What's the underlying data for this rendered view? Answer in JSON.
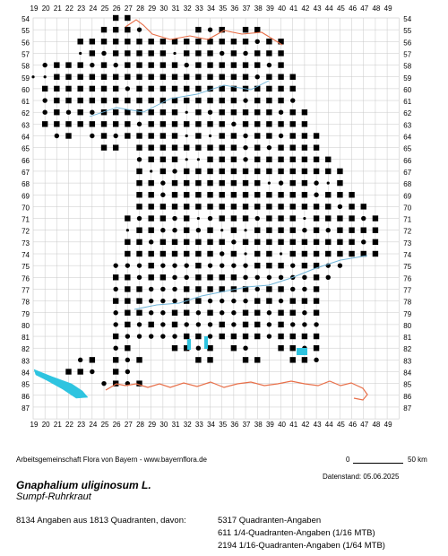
{
  "map": {
    "column_labels": [
      "19",
      "20",
      "21",
      "22",
      "23",
      "24",
      "25",
      "26",
      "27",
      "28",
      "29",
      "30",
      "31",
      "32",
      "33",
      "34",
      "35",
      "36",
      "37",
      "38",
      "39",
      "40",
      "41",
      "42",
      "43",
      "44",
      "45",
      "46",
      "47",
      "48",
      "49"
    ],
    "row_labels": [
      "54",
      "55",
      "56",
      "57",
      "58",
      "59",
      "60",
      "61",
      "62",
      "63",
      "64",
      "65",
      "66",
      "67",
      "68",
      "69",
      "70",
      "71",
      "72",
      "73",
      "74",
      "75",
      "76",
      "77",
      "78",
      "79",
      "80",
      "81",
      "82",
      "83",
      "84",
      "85",
      "86",
      "87"
    ],
    "colors": {
      "grid": "#c8c8c8",
      "border": "#e8704a",
      "rivers": "#6fb4d8",
      "lakes": "#2ec4e0",
      "marker": "#000000"
    },
    "marker_types": [
      "square",
      "dot",
      "small-dot"
    ],
    "coverage_rows": [
      {
        "row": "54",
        "spans": [
          [
            26,
            27
          ]
        ]
      },
      {
        "row": "55",
        "spans": [
          [
            25,
            28
          ],
          [
            33,
            35
          ],
          [
            37,
            38
          ]
        ]
      },
      {
        "row": "56",
        "spans": [
          [
            23,
            40
          ]
        ]
      },
      {
        "row": "57",
        "spans": [
          [
            23,
            40
          ]
        ]
      },
      {
        "row": "58",
        "spans": [
          [
            20,
            40
          ]
        ]
      },
      {
        "row": "59",
        "spans": [
          [
            19,
            41
          ]
        ]
      },
      {
        "row": "60",
        "spans": [
          [
            20,
            41
          ]
        ]
      },
      {
        "row": "61",
        "spans": [
          [
            20,
            41
          ]
        ]
      },
      {
        "row": "62",
        "spans": [
          [
            20,
            42
          ]
        ]
      },
      {
        "row": "63",
        "spans": [
          [
            20,
            42
          ]
        ]
      },
      {
        "row": "64",
        "spans": [
          [
            21,
            22
          ],
          [
            24,
            43
          ]
        ]
      },
      {
        "row": "65",
        "spans": [
          [
            25,
            26
          ],
          [
            28,
            43
          ]
        ]
      },
      {
        "row": "66",
        "spans": [
          [
            28,
            44
          ]
        ]
      },
      {
        "row": "67",
        "spans": [
          [
            28,
            45
          ]
        ]
      },
      {
        "row": "68",
        "spans": [
          [
            28,
            45
          ]
        ]
      },
      {
        "row": "69",
        "spans": [
          [
            28,
            46
          ]
        ]
      },
      {
        "row": "70",
        "spans": [
          [
            28,
            47
          ]
        ]
      },
      {
        "row": "71",
        "spans": [
          [
            27,
            48
          ]
        ]
      },
      {
        "row": "72",
        "spans": [
          [
            27,
            48
          ]
        ]
      },
      {
        "row": "73",
        "spans": [
          [
            27,
            48
          ]
        ]
      },
      {
        "row": "74",
        "spans": [
          [
            27,
            48
          ]
        ]
      },
      {
        "row": "75",
        "spans": [
          [
            26,
            45
          ]
        ]
      },
      {
        "row": "76",
        "spans": [
          [
            26,
            44
          ]
        ]
      },
      {
        "row": "77",
        "spans": [
          [
            26,
            43
          ]
        ]
      },
      {
        "row": "78",
        "spans": [
          [
            26,
            43
          ]
        ]
      },
      {
        "row": "79",
        "spans": [
          [
            26,
            43
          ]
        ]
      },
      {
        "row": "80",
        "spans": [
          [
            26,
            43
          ]
        ]
      },
      {
        "row": "81",
        "spans": [
          [
            26,
            43
          ]
        ]
      },
      {
        "row": "82",
        "spans": [
          [
            26,
            27
          ],
          [
            31,
            34
          ],
          [
            36,
            37
          ],
          [
            40,
            43
          ]
        ]
      },
      {
        "row": "83",
        "spans": [
          [
            23,
            24
          ],
          [
            26,
            28
          ],
          [
            33,
            34
          ],
          [
            37,
            38
          ],
          [
            41,
            43
          ]
        ]
      },
      {
        "row": "84",
        "spans": [
          [
            22,
            24
          ],
          [
            26,
            27
          ]
        ]
      },
      {
        "row": "85",
        "spans": [
          [
            25,
            26
          ],
          [
            27,
            28
          ]
        ]
      }
    ]
  },
  "footer": {
    "credit": "Arbeitsgemeinschaft Flora von Bayern - www.bayernflora.de",
    "scale_zero": "0",
    "scale_fifty": "50 km",
    "date_line": "Datenstand: 05.06.2025",
    "species_name": "Gnaphalium uliginosum L.",
    "common_name": "Sumpf-Ruhrkraut",
    "summary": "8134 Angaben aus 1813 Quadranten, davon:",
    "details": [
      "5317 Quadranten-Angaben",
      "611 1/4-Quadranten-Angaben (1/16 MTB)",
      "2194 1/16-Quadranten-Angaben (1/64 MTB)"
    ]
  }
}
